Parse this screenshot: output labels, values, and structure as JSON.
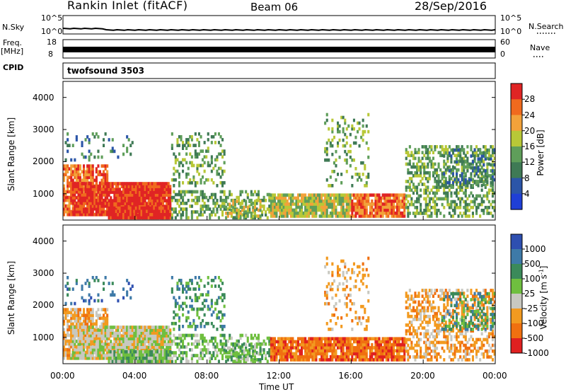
{
  "header": {
    "station": "Rankin Inlet (fitACF)",
    "beam": "Beam 06",
    "date": "28/Sep/2016"
  },
  "left_labels": {
    "nsky": "N.Sky",
    "freq": "Freq.",
    "mhz": "[MHz]",
    "cpid": "CPID"
  },
  "right_labels": {
    "nsearch": "N.Search",
    "nave": "Nave"
  },
  "cpid_value": "twofsound 3503",
  "axis_ticks": {
    "noise_left": [
      "10^5",
      "10^0"
    ],
    "noise_right": [
      "10^5",
      "10^0"
    ],
    "freq_left": [
      "18",
      "8"
    ],
    "freq_right": [
      "60",
      "0"
    ]
  },
  "chart_data": [
    {
      "type": "heatmap",
      "panel": "power",
      "ylabel": "Slant Range [km]",
      "xlim": [
        "00:00",
        "24:00"
      ],
      "ylim": [
        180,
        4500
      ],
      "yticks": [
        "4000",
        "3000",
        "2000",
        "1000"
      ],
      "colorbar_label": "Power [dB]",
      "colorbar_ticks": [
        "28",
        "24",
        "20",
        "16",
        "12",
        "8",
        "4"
      ],
      "colors": [
        "#1f3fd6",
        "#2b55a8",
        "#3f7a55",
        "#5f9e5a",
        "#b8c837",
        "#f2a23a",
        "#f06a1e",
        "#e02424"
      ]
    },
    {
      "type": "heatmap",
      "panel": "velocity",
      "ylabel": "Slant Range [km]",
      "xlabel": "Time UT",
      "xticks": [
        "00:00",
        "04:00",
        "08:00",
        "12:00",
        "16:00",
        "20:00",
        "00:00"
      ],
      "xlim": [
        "00:00",
        "24:00"
      ],
      "ylim": [
        180,
        4500
      ],
      "yticks": [
        "4000",
        "3000",
        "2000",
        "1000"
      ],
      "colorbar_label": "Velocity [m s",
      "colorbar_label_sup": "-1",
      "colorbar_label_end": "]",
      "colorbar_ticks": [
        "1000",
        "500",
        "100",
        "25",
        "-25",
        "-100",
        "-500",
        "-1000"
      ],
      "colors": [
        "#2e4fb0",
        "#3e7aa8",
        "#3b8a5a",
        "#6fbf3f",
        "#c8c8c0",
        "#f29a20",
        "#f07010",
        "#e02020"
      ]
    }
  ]
}
